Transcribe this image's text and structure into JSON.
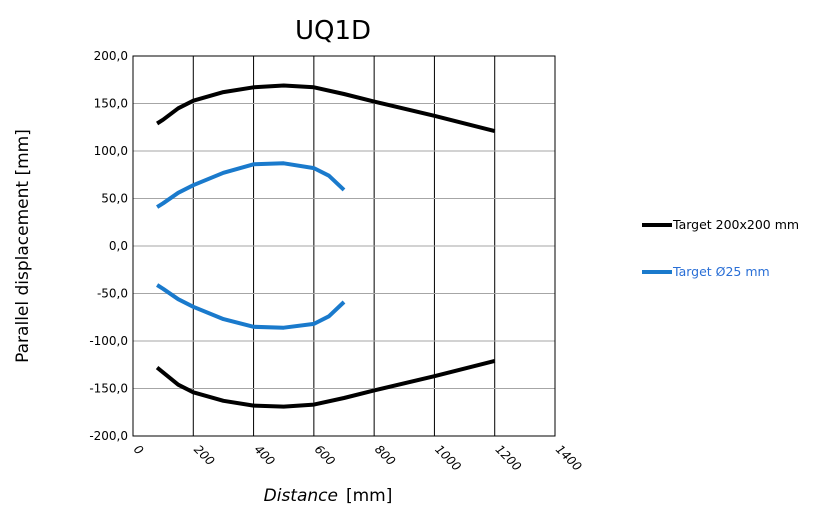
{
  "chart_data": {
    "type": "line",
    "title": "UQ1D",
    "xlabel": {
      "italic": "Distance",
      "rest": "[mm]"
    },
    "ylabel": "Parallel displacement [mm]",
    "xlim": [
      0,
      1400
    ],
    "ylim": [
      -200,
      200
    ],
    "xticks": [
      0,
      200,
      400,
      600,
      800,
      1000,
      1200,
      1400
    ],
    "yticks": [
      200,
      150,
      100,
      50,
      0,
      -50,
      -100,
      -150,
      -200
    ],
    "ytick_labels": [
      "200,0",
      "150,0",
      "100,0",
      "50,0",
      "0,0",
      "-50,0",
      "-100,0",
      "-150,0",
      "-200,0"
    ],
    "grid": {
      "vertical": true,
      "horizontal": true
    },
    "legend_position": "right",
    "series": [
      {
        "name": "Target 200x200 mm",
        "color": "#000000",
        "segments": [
          {
            "x": [
              80,
              100,
              150,
              200,
              300,
              400,
              500,
              600,
              700,
              800,
              1000,
              1200
            ],
            "y": [
              129,
              133,
              145,
              153,
              162,
              167,
              169,
              167,
              160,
              152,
              137,
              121
            ]
          },
          {
            "x": [
              80,
              100,
              150,
              200,
              300,
              400,
              500,
              600,
              700,
              800,
              1000,
              1200
            ],
            "y": [
              -128,
              -133,
              -146,
              -154,
              -163,
              -168,
              -169,
              -167,
              -160,
              -152,
              -137,
              -121
            ]
          }
        ]
      },
      {
        "name": "Target Ø25 mm",
        "color": "#1a7acc",
        "segments": [
          {
            "x": [
              80,
              100,
              150,
              200,
              300,
              400,
              500,
              600,
              650,
              700
            ],
            "y": [
              41,
              45,
              56,
              64,
              77,
              86,
              87,
              82,
              74,
              59
            ]
          },
          {
            "x": [
              80,
              100,
              150,
              200,
              300,
              400,
              500,
              600,
              650,
              700
            ],
            "y": [
              -41,
              -45,
              -56,
              -64,
              -77,
              -85,
              -86,
              -82,
              -74,
              -59
            ]
          }
        ]
      }
    ]
  }
}
